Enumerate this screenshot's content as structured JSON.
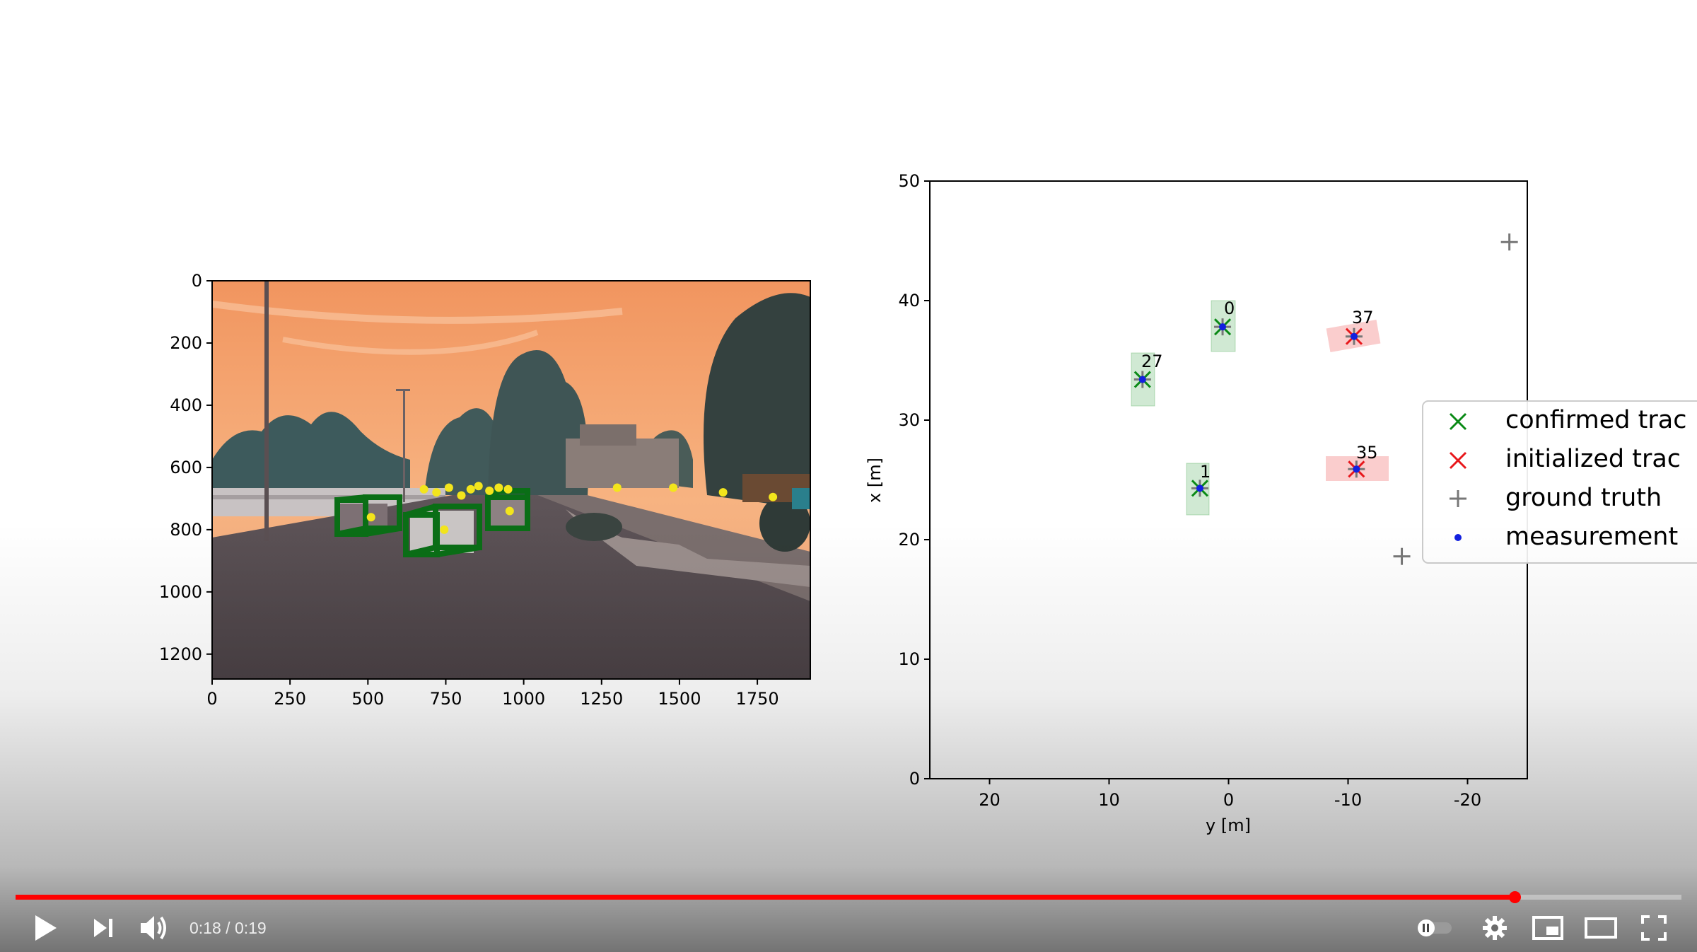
{
  "player": {
    "current_time": "0:18",
    "time_separator": " / ",
    "duration": "0:19",
    "progress_fraction": 0.9,
    "accent_color": "#ff0000",
    "controls": {
      "play_icon": "play-icon",
      "next_icon": "next-icon",
      "volume_icon": "volume-icon",
      "autoplay_icon": "autoplay-toggle-icon",
      "settings_icon": "gear-icon",
      "miniplayer_icon": "miniplayer-icon",
      "theater_icon": "theater-mode-icon",
      "fullscreen_icon": "fullscreen-icon"
    }
  },
  "video": {
    "camera_plot": {
      "y_ticks": [
        "0",
        "200",
        "400",
        "600",
        "800",
        "1000",
        "1200"
      ],
      "x_ticks": [
        "0",
        "250",
        "500",
        "750",
        "1000",
        "1250",
        "1500",
        "1750"
      ]
    },
    "tracking_plot": {
      "xlabel": "y [m]",
      "ylabel": "x [m]",
      "y_ticks": [
        "0",
        "10",
        "20",
        "30",
        "40",
        "50"
      ],
      "x_ticks": [
        "20",
        "10",
        "0",
        "-10",
        "-20"
      ],
      "track_labels": [
        "0",
        "27",
        "37",
        "35",
        "1"
      ],
      "legend": {
        "confirmed": "confirmed trac",
        "initialized": "initialized trac",
        "ground_truth": "ground truth",
        "measurement": "measurement"
      }
    }
  },
  "chart_data": [
    {
      "type": "scatter",
      "title": "",
      "xlabel": "",
      "ylabel": "",
      "xlim": [
        0,
        1920
      ],
      "ylim": [
        1280,
        0
      ],
      "series": [
        {
          "x": [
            1300,
            1480,
            1640,
            1800,
            510,
            745,
            955,
            680,
            720,
            760,
            800,
            830,
            855,
            890,
            920,
            950
          ],
          "y": [
            665,
            665,
            680,
            695,
            760,
            800,
            740,
            670,
            680,
            665,
            690,
            670,
            660,
            675,
            665,
            670
          ]
        }
      ]
    },
    {
      "type": "scatter",
      "title": "",
      "xlabel": "y [m]",
      "ylabel": "x [m]",
      "xlim": [
        25,
        -25
      ],
      "ylim": [
        0,
        50
      ],
      "series": [
        {
          "name": "confirmed trac",
          "x": [
            0.5,
            7.2,
            2.4
          ],
          "y": [
            37.8,
            33.4,
            24.3
          ]
        },
        {
          "name": "initialized trac",
          "x": [
            -10.5,
            -10.7
          ],
          "y": [
            37.0,
            25.9
          ]
        },
        {
          "name": "ground truth",
          "x": [
            -23.5,
            -14.5,
            0.5,
            7.2,
            2.4,
            -10.5,
            -10.7
          ],
          "y": [
            44.9,
            18.6,
            37.8,
            33.4,
            24.3,
            37.0,
            25.9
          ]
        },
        {
          "name": "measurement",
          "x": [
            0.5,
            7.2,
            2.4,
            -10.5,
            -10.7
          ],
          "y": [
            37.8,
            33.4,
            24.3,
            37.0,
            25.9
          ]
        }
      ]
    }
  ]
}
